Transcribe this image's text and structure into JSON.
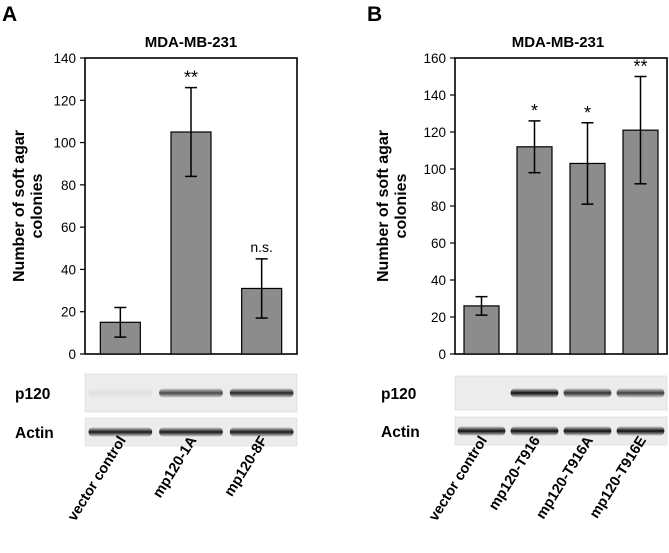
{
  "chart_data": [
    {
      "panel": "A",
      "type": "bar",
      "title": "MDA-MB-231",
      "ylabel": "Number of soft agar colonies",
      "ylabel_lines": [
        "Number of soft agar",
        "colonies"
      ],
      "ylim": [
        0,
        140
      ],
      "yticks": [
        0,
        20,
        40,
        60,
        80,
        100,
        120,
        140
      ],
      "categories": [
        "vector control",
        "mp120-1A",
        "mp120-8F"
      ],
      "values": [
        15,
        105,
        31
      ],
      "errors": [
        7,
        21,
        14
      ],
      "annotations": [
        "",
        "**",
        "n.s."
      ],
      "bar_color": "#8c8c8c",
      "blots": [
        {
          "label": "p120",
          "intensities": [
            0.05,
            0.7,
            0.85
          ]
        },
        {
          "label": "Actin",
          "intensities": [
            0.9,
            0.9,
            0.9
          ]
        }
      ]
    },
    {
      "panel": "B",
      "type": "bar",
      "title": "MDA-MB-231",
      "ylabel": "Number of soft agar colonies",
      "ylabel_lines": [
        "Number of soft agar",
        "colonies"
      ],
      "ylim": [
        0,
        160
      ],
      "yticks": [
        0,
        20,
        40,
        60,
        80,
        100,
        120,
        140,
        160
      ],
      "categories": [
        "vector control",
        "mp120-T916",
        "mp120-T916A",
        "mp120-T916E"
      ],
      "values": [
        26,
        112,
        103,
        121
      ],
      "errors": [
        5,
        14,
        22,
        29
      ],
      "annotations": [
        "",
        "*",
        "*",
        "**"
      ],
      "bar_color": "#8c8c8c",
      "blots": [
        {
          "label": "p120",
          "intensities": [
            0.0,
            0.95,
            0.8,
            0.75
          ]
        },
        {
          "label": "Actin",
          "intensities": [
            0.95,
            0.95,
            0.95,
            0.95
          ]
        }
      ]
    }
  ]
}
